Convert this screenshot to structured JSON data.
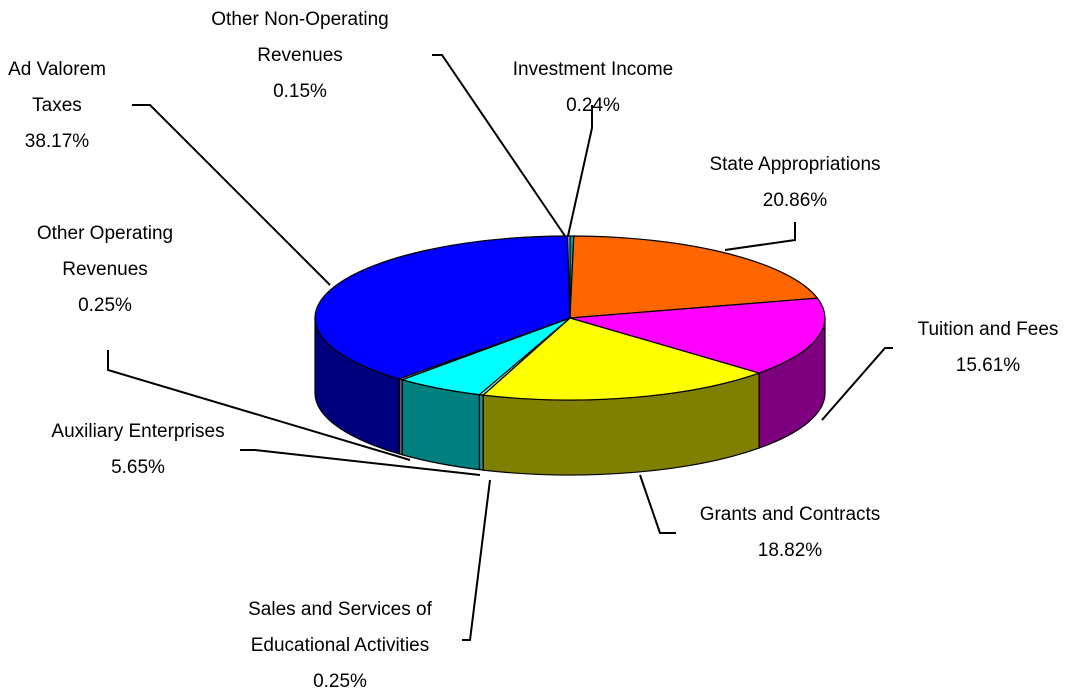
{
  "chart_data": {
    "type": "pie",
    "categories": [
      "Investment Income",
      "State Appropriations",
      "Tuition and Fees",
      "Grants and Contracts",
      "Sales and Services of Educational Activities",
      "Auxiliary Enterprises",
      "Other Operating Revenues",
      "Ad Valorem Taxes",
      "Other Non-Operating Revenues"
    ],
    "values": [
      0.24,
      20.86,
      15.61,
      18.82,
      0.25,
      5.65,
      0.25,
      38.17,
      0.15
    ],
    "value_labels": [
      "0.24%",
      "20.86%",
      "15.61%",
      "18.82%",
      "0.25%",
      "5.65%",
      "0.25%",
      "38.17%",
      "0.15%"
    ],
    "colors": [
      "#00a0a0",
      "#ff6600",
      "#ff00ff",
      "#ffff00",
      "#80ffff",
      "#00ffff",
      "#c0c0c0",
      "#0000ff",
      "#99ccff"
    ]
  }
}
